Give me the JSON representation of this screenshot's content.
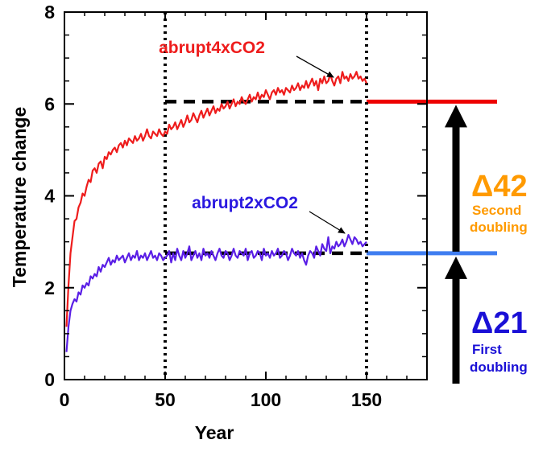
{
  "colors": {
    "red_series": "#ee1c1c",
    "blue_series": "#5a1ee6",
    "red_level_bar": "#ee0000",
    "blue_level_bar": "#3f7df0",
    "delta42": "#ff9a00",
    "delta21": "#1a10d6",
    "guide": "#000000"
  },
  "chart_data": {
    "type": "line",
    "xlabel": "Year",
    "ylabel": "Temperature change",
    "xlim": [
      0,
      180
    ],
    "ylim": [
      0,
      8
    ],
    "x_ticks": [
      "0",
      "50",
      "100",
      "150"
    ],
    "y_ticks": [
      "0",
      "2",
      "4",
      "6",
      "8"
    ],
    "grid": false,
    "vertical_guides_x": [
      50,
      150
    ],
    "level_lines": [
      {
        "series": "abrupt4xCO2",
        "y": 6.05
      },
      {
        "series": "abrupt2xCO2",
        "y": 2.75
      }
    ],
    "series": [
      {
        "name": "abrupt4xCO2",
        "color": "#ee1c1c",
        "x": [
          1,
          2,
          3,
          4,
          5,
          6,
          7,
          8,
          9,
          10,
          11,
          12,
          13,
          14,
          15,
          16,
          17,
          18,
          19,
          20,
          21,
          22,
          23,
          24,
          25,
          26,
          27,
          28,
          29,
          30,
          31,
          32,
          33,
          34,
          35,
          36,
          37,
          38,
          39,
          40,
          41,
          42,
          43,
          44,
          45,
          46,
          47,
          48,
          49,
          50,
          51,
          52,
          53,
          54,
          55,
          56,
          57,
          58,
          59,
          60,
          61,
          62,
          63,
          64,
          65,
          66,
          67,
          68,
          69,
          70,
          71,
          72,
          73,
          74,
          75,
          76,
          77,
          78,
          79,
          80,
          81,
          82,
          83,
          84,
          85,
          86,
          87,
          88,
          89,
          90,
          91,
          92,
          93,
          94,
          95,
          96,
          97,
          98,
          99,
          100,
          101,
          102,
          103,
          104,
          105,
          106,
          107,
          108,
          109,
          110,
          111,
          112,
          113,
          114,
          115,
          116,
          117,
          118,
          119,
          120,
          121,
          122,
          123,
          124,
          125,
          126,
          127,
          128,
          129,
          130,
          131,
          132,
          133,
          134,
          135,
          136,
          137,
          138,
          139,
          140,
          141,
          142,
          143,
          144,
          145,
          146,
          147,
          148,
          149,
          150
        ],
        "values": [
          1.15,
          2.05,
          2.75,
          3.1,
          3.45,
          3.5,
          3.75,
          3.85,
          4.05,
          4.0,
          4.2,
          4.35,
          4.3,
          4.55,
          4.6,
          4.5,
          4.7,
          4.75,
          4.6,
          4.85,
          4.8,
          4.95,
          4.9,
          5.0,
          5.05,
          4.95,
          5.1,
          5.15,
          5.05,
          5.2,
          5.1,
          5.25,
          5.2,
          5.15,
          5.3,
          5.2,
          5.25,
          5.35,
          5.2,
          5.3,
          5.45,
          5.3,
          5.25,
          5.4,
          5.35,
          5.3,
          5.45,
          5.35,
          5.3,
          5.4,
          5.35,
          5.55,
          5.45,
          5.5,
          5.6,
          5.45,
          5.55,
          5.65,
          5.5,
          5.6,
          5.75,
          5.6,
          5.65,
          5.8,
          5.7,
          5.6,
          5.75,
          5.85,
          5.7,
          5.8,
          5.9,
          5.75,
          5.85,
          5.95,
          5.8,
          5.9,
          5.85,
          6.0,
          5.9,
          5.95,
          6.05,
          5.9,
          6.0,
          6.1,
          5.95,
          6.05,
          6.0,
          6.15,
          6.05,
          6.0,
          6.1,
          6.2,
          6.05,
          6.15,
          6.1,
          6.25,
          6.1,
          6.2,
          6.15,
          6.3,
          6.2,
          6.1,
          6.25,
          6.3,
          6.2,
          6.35,
          6.25,
          6.3,
          6.2,
          6.35,
          6.3,
          6.25,
          6.4,
          6.3,
          6.35,
          6.45,
          6.3,
          6.4,
          6.35,
          6.5,
          6.35,
          6.45,
          6.55,
          6.4,
          6.5,
          6.3,
          6.55,
          6.45,
          6.6,
          6.45,
          6.5,
          6.65,
          6.5,
          6.4,
          6.55,
          6.6,
          6.45,
          6.7,
          6.55,
          6.6,
          6.5,
          6.65,
          6.55,
          6.6,
          6.7,
          6.55,
          6.6,
          6.5,
          6.55,
          6.45
        ]
      },
      {
        "name": "abrupt2xCO2",
        "color": "#5a1ee6",
        "x": [
          1,
          2,
          3,
          4,
          5,
          6,
          7,
          8,
          9,
          10,
          11,
          12,
          13,
          14,
          15,
          16,
          17,
          18,
          19,
          20,
          21,
          22,
          23,
          24,
          25,
          26,
          27,
          28,
          29,
          30,
          31,
          32,
          33,
          34,
          35,
          36,
          37,
          38,
          39,
          40,
          41,
          42,
          43,
          44,
          45,
          46,
          47,
          48,
          49,
          50,
          51,
          52,
          53,
          54,
          55,
          56,
          57,
          58,
          59,
          60,
          61,
          62,
          63,
          64,
          65,
          66,
          67,
          68,
          69,
          70,
          71,
          72,
          73,
          74,
          75,
          76,
          77,
          78,
          79,
          80,
          81,
          82,
          83,
          84,
          85,
          86,
          87,
          88,
          89,
          90,
          91,
          92,
          93,
          94,
          95,
          96,
          97,
          98,
          99,
          100,
          101,
          102,
          103,
          104,
          105,
          106,
          107,
          108,
          109,
          110,
          111,
          112,
          113,
          114,
          115,
          116,
          117,
          118,
          119,
          120,
          121,
          122,
          123,
          124,
          125,
          126,
          127,
          128,
          129,
          130,
          131,
          132,
          133,
          134,
          135,
          136,
          137,
          138,
          139,
          140,
          141,
          142,
          143,
          144,
          145,
          146,
          147,
          148,
          149,
          150
        ],
        "values": [
          0.6,
          1.15,
          1.5,
          1.65,
          1.75,
          1.7,
          1.9,
          1.85,
          2.05,
          2.0,
          2.1,
          2.05,
          2.25,
          2.2,
          2.3,
          2.25,
          2.45,
          2.35,
          2.5,
          2.45,
          2.55,
          2.65,
          2.5,
          2.6,
          2.55,
          2.7,
          2.6,
          2.65,
          2.7,
          2.55,
          2.65,
          2.75,
          2.6,
          2.7,
          2.65,
          2.8,
          2.6,
          2.7,
          2.65,
          2.75,
          2.6,
          2.7,
          2.8,
          2.65,
          2.7,
          2.6,
          2.75,
          2.7,
          2.6,
          2.65,
          2.7,
          2.8,
          2.55,
          2.75,
          2.6,
          2.85,
          2.7,
          2.6,
          2.8,
          2.65,
          2.75,
          2.9,
          2.6,
          2.7,
          2.8,
          2.65,
          2.75,
          2.6,
          2.85,
          2.7,
          2.75,
          2.65,
          2.8,
          2.7,
          2.6,
          2.75,
          2.85,
          2.7,
          2.65,
          2.8,
          2.75,
          2.6,
          2.7,
          2.85,
          2.7,
          2.65,
          2.8,
          2.75,
          2.7,
          2.85,
          2.6,
          2.75,
          2.8,
          2.65,
          2.7,
          2.8,
          2.75,
          2.6,
          2.85,
          2.7,
          2.75,
          2.65,
          2.8,
          2.7,
          2.75,
          2.85,
          2.65,
          2.7,
          2.8,
          2.75,
          2.6,
          2.7,
          2.85,
          2.75,
          2.7,
          2.8,
          2.65,
          2.75,
          2.6,
          2.5,
          2.7,
          2.8,
          2.75,
          2.65,
          2.9,
          2.8,
          2.7,
          2.95,
          2.85,
          2.8,
          3.1,
          2.75,
          2.9,
          2.85,
          3.0,
          2.9,
          2.95,
          3.05,
          2.9,
          3.0,
          3.15,
          3.05,
          2.95,
          3.1,
          3.05,
          2.95,
          3.0,
          2.9,
          2.95,
          3.0
        ]
      }
    ],
    "annotations": [
      {
        "text": "abrupt4xCO2",
        "color": "#ee1c1c"
      },
      {
        "text": "abrupt2xCO2",
        "color": "#2a18e0"
      }
    ],
    "deltas": [
      {
        "label": "Δ42",
        "line1": "Second",
        "line2": "doubling",
        "color": "#ff9a00"
      },
      {
        "label": "Δ21",
        "line1": "First",
        "line2": "doubling",
        "color": "#1a10d6"
      }
    ]
  }
}
